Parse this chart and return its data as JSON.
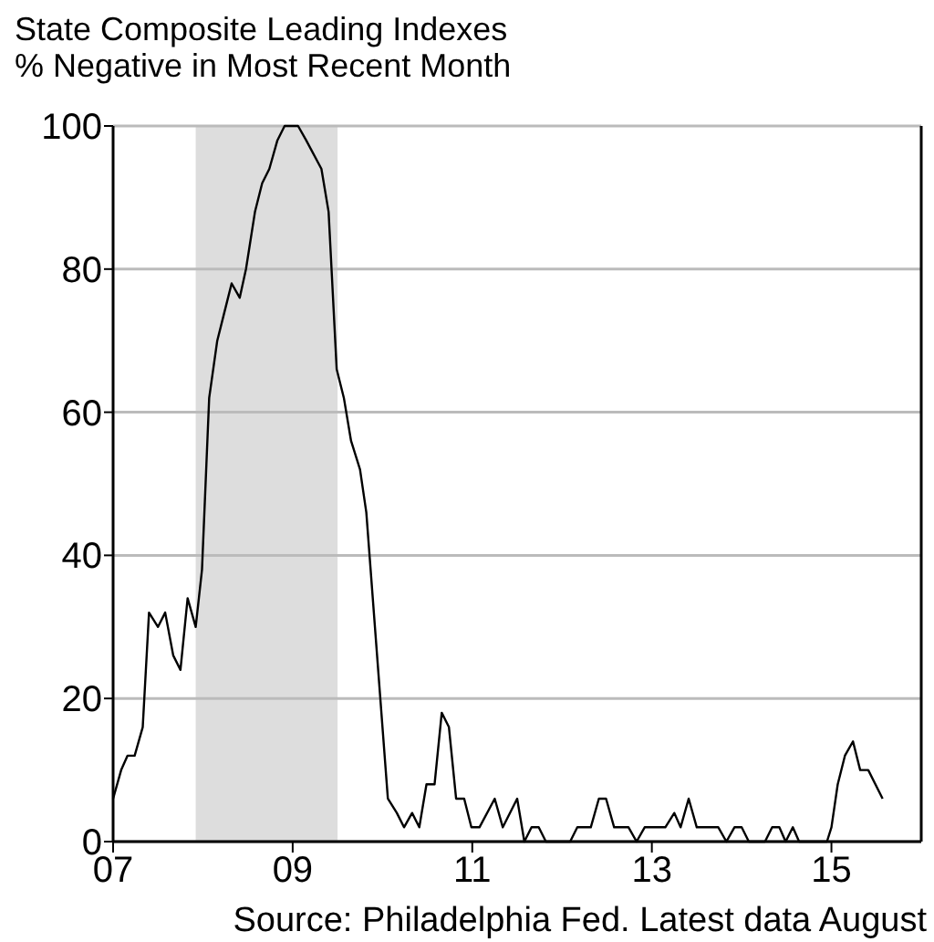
{
  "chart_data": {
    "type": "line",
    "title": "State Composite Leading Indexes\n% Negative in Most Recent Month",
    "x": [
      2007.0,
      2007.09,
      2007.16,
      2007.24,
      2007.33,
      2007.4,
      2007.5,
      2007.58,
      2007.67,
      2007.75,
      2007.83,
      2007.92,
      2007.99,
      2008.07,
      2008.16,
      2008.24,
      2008.32,
      2008.41,
      2008.48,
      2008.58,
      2008.66,
      2008.74,
      2008.83,
      2008.91,
      2009.06,
      2009.15,
      2009.32,
      2009.4,
      2009.49,
      2009.57,
      2009.65,
      2009.75,
      2009.82,
      2010.06,
      2010.16,
      2010.24,
      2010.33,
      2010.41,
      2010.49,
      2010.58,
      2010.66,
      2010.74,
      2010.82,
      2010.91,
      2010.99,
      2011.08,
      2011.25,
      2011.34,
      2011.5,
      2011.58,
      2011.66,
      2011.74,
      2011.82,
      2012.09,
      2012.17,
      2012.32,
      2012.41,
      2012.49,
      2012.58,
      2012.74,
      2012.83,
      2012.92,
      2013.15,
      2013.25,
      2013.32,
      2013.41,
      2013.5,
      2013.74,
      2013.83,
      2013.92,
      2014.0,
      2014.08,
      2014.26,
      2014.34,
      2014.42,
      2014.49,
      2014.57,
      2014.64,
      2014.95,
      2015.0,
      2015.07,
      2015.15,
      2015.24,
      2015.32,
      2015.41,
      2015.57
    ],
    "series": [
      {
        "color": "#000000",
        "values": [
          6,
          10,
          12,
          12,
          16,
          32,
          30,
          32,
          26,
          24,
          34,
          30,
          38,
          62,
          70,
          74,
          78,
          76,
          80,
          88,
          92,
          94,
          98,
          100,
          100,
          98,
          94,
          88,
          66,
          62,
          56,
          52,
          46,
          6,
          4,
          2,
          4,
          2,
          8,
          8,
          18,
          16,
          6,
          6,
          2,
          2,
          6,
          2,
          6,
          0,
          2,
          2,
          0,
          0,
          2,
          2,
          6,
          6,
          2,
          2,
          0,
          2,
          2,
          4,
          2,
          6,
          2,
          2,
          0,
          2,
          2,
          0,
          0,
          2,
          2,
          0,
          2,
          0,
          0,
          2,
          8,
          12,
          14,
          10,
          10,
          6
        ]
      }
    ],
    "xlim": [
      2007,
      2016
    ],
    "xticks": [
      {
        "value": 2007,
        "label": "07"
      },
      {
        "value": 2009,
        "label": "09"
      },
      {
        "value": 2011,
        "label": "11"
      },
      {
        "value": 2013,
        "label": "13"
      },
      {
        "value": 2015,
        "label": "15"
      }
    ],
    "ylim": [
      0,
      100
    ],
    "yticks": [
      0,
      20,
      40,
      60,
      80,
      100
    ],
    "grid": "y",
    "bands": [
      {
        "axis": "x",
        "from": 2007.92,
        "to": 2009.5,
        "color": "#dddddd"
      }
    ],
    "annotations": [
      "Source: Philadelphia Fed. Latest data August"
    ]
  }
}
